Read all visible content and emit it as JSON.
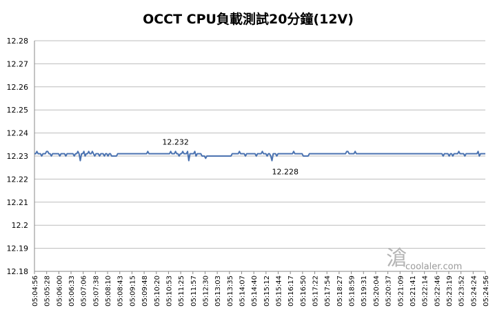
{
  "chart_data": {
    "type": "line",
    "title": "OCCT CPU負載測試20分鐘(12V)",
    "xlabel": "",
    "ylabel": "",
    "ylim": [
      12.18,
      12.28
    ],
    "yticks": [
      12.18,
      12.19,
      12.2,
      12.21,
      12.22,
      12.23,
      12.24,
      12.25,
      12.26,
      12.27,
      12.28
    ],
    "ytick_labels": [
      "12.18",
      "12.19",
      "12.2",
      "12.21",
      "12.22",
      "12.23",
      "12.24",
      "12.25",
      "12.26",
      "12.27",
      "12.28"
    ],
    "xtick_labels": [
      "05:04:56",
      "05:05:28",
      "05:06:00",
      "05:06:33",
      "05:07:06",
      "05:07:38",
      "05:08:10",
      "05:08:43",
      "05:09:15",
      "05:09:48",
      "05:10:20",
      "05:10:53",
      "05:11:25",
      "05:11:57",
      "05:12:30",
      "05:13:03",
      "05:13:35",
      "05:14:07",
      "05:14:40",
      "05:15:12",
      "05:15:44",
      "05:16:17",
      "05:16:50",
      "05:17:22",
      "05:17:54",
      "05:18:27",
      "05:18:59",
      "05:19:31",
      "05:20:04",
      "05:20:37",
      "05:21:09",
      "05:21:41",
      "05:22:14",
      "05:22:46",
      "05:23:19",
      "05:23:52",
      "05:24:24",
      "05:24:56"
    ],
    "grid": {
      "horizontal": true,
      "vertical": false
    },
    "legend": "none",
    "series": [
      {
        "color": "#4a72b0",
        "values": [
          12.231,
          12.231,
          12.232,
          12.231,
          12.231,
          12.231,
          12.23,
          12.231,
          12.231,
          12.231,
          12.232,
          12.232,
          12.231,
          12.231,
          12.23,
          12.231,
          12.231,
          12.231,
          12.231,
          12.231,
          12.231,
          12.23,
          12.231,
          12.231,
          12.231,
          12.231,
          12.23,
          12.231,
          12.231,
          12.231,
          12.231,
          12.231,
          12.231,
          12.23,
          12.231,
          12.231,
          12.232,
          12.231,
          12.228,
          12.231,
          12.231,
          12.232,
          12.23,
          12.231,
          12.231,
          12.232,
          12.231,
          12.231,
          12.232,
          12.231,
          12.23,
          12.231,
          12.231,
          12.231,
          12.23,
          12.231,
          12.231,
          12.231,
          12.23,
          12.231,
          12.231,
          12.23,
          12.231,
          12.231,
          12.23,
          12.23,
          12.23,
          12.23,
          12.23,
          12.231,
          12.231,
          12.231,
          12.231,
          12.231,
          12.231,
          12.231,
          12.231,
          12.231,
          12.231,
          12.231,
          12.231,
          12.231,
          12.231,
          12.231,
          12.231,
          12.231,
          12.231,
          12.231,
          12.231,
          12.231,
          12.231,
          12.231,
          12.231,
          12.231,
          12.232,
          12.231,
          12.231,
          12.231,
          12.231,
          12.231,
          12.231,
          12.231,
          12.231,
          12.231,
          12.231,
          12.231,
          12.231,
          12.231,
          12.231,
          12.231,
          12.231,
          12.231,
          12.231,
          12.232,
          12.231,
          12.231,
          12.231,
          12.232,
          12.231,
          12.231,
          12.23,
          12.231,
          12.231,
          12.232,
          12.231,
          12.231,
          12.231,
          12.232,
          12.228,
          12.231,
          12.231,
          12.231,
          12.231,
          12.232,
          12.23,
          12.231,
          12.231,
          12.231,
          12.231,
          12.23,
          12.23,
          12.23,
          12.229,
          12.23,
          12.23,
          12.23,
          12.23,
          12.23,
          12.23,
          12.23,
          12.23,
          12.23,
          12.23,
          12.23,
          12.23,
          12.23,
          12.23,
          12.23,
          12.23,
          12.23,
          12.23,
          12.23,
          12.23,
          12.23,
          12.231,
          12.231,
          12.231,
          12.231,
          12.231,
          12.231,
          12.232,
          12.231,
          12.231,
          12.231,
          12.231,
          12.23,
          12.231,
          12.231,
          12.231,
          12.231,
          12.231,
          12.231,
          12.231,
          12.231,
          12.23,
          12.231,
          12.231,
          12.231,
          12.231,
          12.232,
          12.231,
          12.231,
          12.231,
          12.23,
          12.231,
          12.231,
          12.23,
          12.228,
          12.231,
          12.231,
          12.231,
          12.23,
          12.231,
          12.231,
          12.231,
          12.231,
          12.231,
          12.231,
          12.231,
          12.231,
          12.231,
          12.231,
          12.231,
          12.231,
          12.231,
          12.232,
          12.231,
          12.231,
          12.231,
          12.231,
          12.231,
          12.231,
          12.231,
          12.23,
          12.23,
          12.23,
          12.23,
          12.23,
          12.231,
          12.231,
          12.231,
          12.231,
          12.231,
          12.231,
          12.231,
          12.231,
          12.231,
          12.231,
          12.231,
          12.231,
          12.231,
          12.231,
          12.231,
          12.231,
          12.231,
          12.231,
          12.231,
          12.231,
          12.231,
          12.231,
          12.231,
          12.231,
          12.231,
          12.231,
          12.231,
          12.231,
          12.231,
          12.231,
          12.231,
          12.232,
          12.232,
          12.231,
          12.231,
          12.231,
          12.231,
          12.231,
          12.232,
          12.231,
          12.231,
          12.231,
          12.231,
          12.231,
          12.231,
          12.231,
          12.231,
          12.231,
          12.231,
          12.231,
          12.231,
          12.231,
          12.231,
          12.231,
          12.231,
          12.231,
          12.231,
          12.231,
          12.231,
          12.231,
          12.231,
          12.231,
          12.231,
          12.231,
          12.231,
          12.231,
          12.231,
          12.231,
          12.231,
          12.231,
          12.231,
          12.231,
          12.231,
          12.231,
          12.231,
          12.231,
          12.231,
          12.231,
          12.231,
          12.231,
          12.231,
          12.231,
          12.231,
          12.231,
          12.231,
          12.231,
          12.231,
          12.231,
          12.231,
          12.231,
          12.231,
          12.231,
          12.231,
          12.231,
          12.231,
          12.231,
          12.231,
          12.231,
          12.231,
          12.231,
          12.231,
          12.231,
          12.231,
          12.231,
          12.231,
          12.231,
          12.231,
          12.231,
          12.231,
          12.231,
          12.231,
          12.23,
          12.231,
          12.231,
          12.231,
          12.231,
          12.23,
          12.231,
          12.231,
          12.23,
          12.231,
          12.231,
          12.231,
          12.231,
          12.232,
          12.231,
          12.231,
          12.231,
          12.231,
          12.23,
          12.231,
          12.231,
          12.231,
          12.231,
          12.231,
          12.231,
          12.231,
          12.231,
          12.231,
          12.231,
          12.232,
          12.23,
          12.231,
          12.231,
          12.231,
          12.231,
          12.231
        ]
      }
    ],
    "annotations": [
      {
        "text": "12.232",
        "x_index": 117,
        "y": 12.232,
        "offset": "above"
      },
      {
        "text": "12.228",
        "x_index": 208,
        "y": 12.228,
        "offset": "below"
      }
    ],
    "axis_color": "#888888",
    "grid_color": "#bbbbbb"
  },
  "watermark": {
    "glyph": "滄",
    "text": "coolaler.com"
  }
}
